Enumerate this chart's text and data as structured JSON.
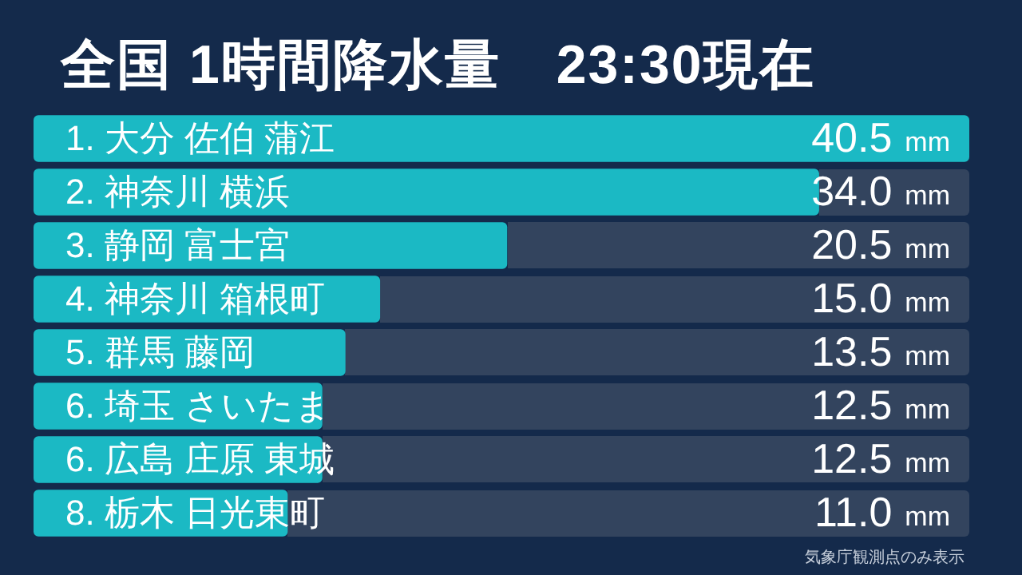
{
  "chart_data": {
    "type": "bar",
    "orientation": "horizontal",
    "title": "全国 1時間降水量　23:30現在",
    "categories": [
      "1. 大分 佐伯 蒲江",
      "2. 神奈川 横浜",
      "3. 静岡 富士宮",
      "4. 神奈川 箱根町",
      "5. 群馬 藤岡",
      "6. 埼玉 さいたま",
      "6. 広島 庄原 東城",
      "8. 栃木 日光東町"
    ],
    "values": [
      40.5,
      34.0,
      20.5,
      15.0,
      13.5,
      12.5,
      12.5,
      11.0
    ],
    "value_labels": [
      "40.5",
      "34.0",
      "20.5",
      "15.0",
      "13.5",
      "12.5",
      "12.5",
      "11.0"
    ],
    "color": "#1bb9c4",
    "annotations": [
      "mm",
      "mm",
      "mm",
      "mm",
      "mm",
      "mm",
      "mm",
      "mm",
      "気象庁観測点のみ表示"
    ]
  }
}
